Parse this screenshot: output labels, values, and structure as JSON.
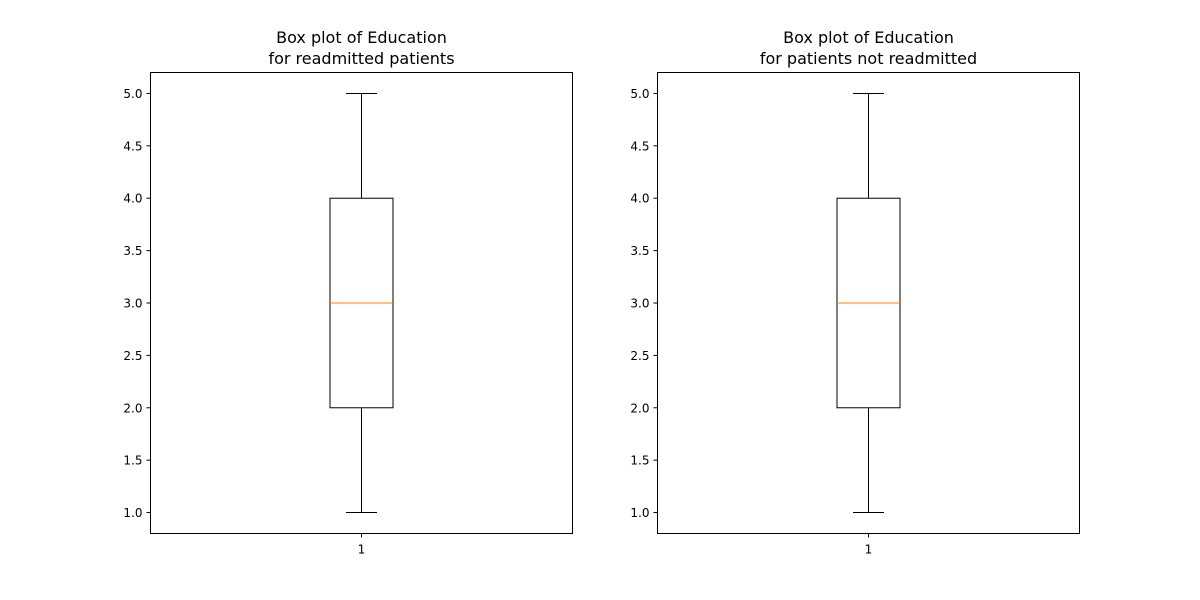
{
  "chart_data": [
    {
      "type": "box",
      "title_lines": [
        "Box plot of Education",
        "for readmitted patients"
      ],
      "xlabel": "",
      "ylabel": "",
      "x_tick_labels": [
        "1"
      ],
      "y_ticks": [
        1.0,
        1.5,
        2.0,
        2.5,
        3.0,
        3.5,
        4.0,
        4.5,
        5.0
      ],
      "y_tick_labels": [
        "1.0",
        "1.5",
        "2.0",
        "2.5",
        "3.0",
        "3.5",
        "4.0",
        "4.5",
        "5.0"
      ],
      "ylim": [
        0.8,
        5.2
      ],
      "grid": false,
      "boxes": [
        {
          "label": "1",
          "whisker_low": 1.0,
          "q1": 2.0,
          "median": 3.0,
          "q3": 4.0,
          "whisker_high": 5.0
        }
      ]
    },
    {
      "type": "box",
      "title_lines": [
        "Box plot of Education",
        "for patients not readmitted"
      ],
      "xlabel": "",
      "ylabel": "",
      "x_tick_labels": [
        "1"
      ],
      "y_ticks": [
        1.0,
        1.5,
        2.0,
        2.5,
        3.0,
        3.5,
        4.0,
        4.5,
        5.0
      ],
      "y_tick_labels": [
        "1.0",
        "1.5",
        "2.0",
        "2.5",
        "3.0",
        "3.5",
        "4.0",
        "4.5",
        "5.0"
      ],
      "ylim": [
        0.8,
        5.2
      ],
      "grid": false,
      "boxes": [
        {
          "label": "1",
          "whisker_low": 1.0,
          "q1": 2.0,
          "median": 3.0,
          "q3": 4.0,
          "whisker_high": 5.0
        }
      ]
    }
  ],
  "colors": {
    "box": "#000000",
    "median": "#ff7f0e",
    "axes": "#000000"
  }
}
